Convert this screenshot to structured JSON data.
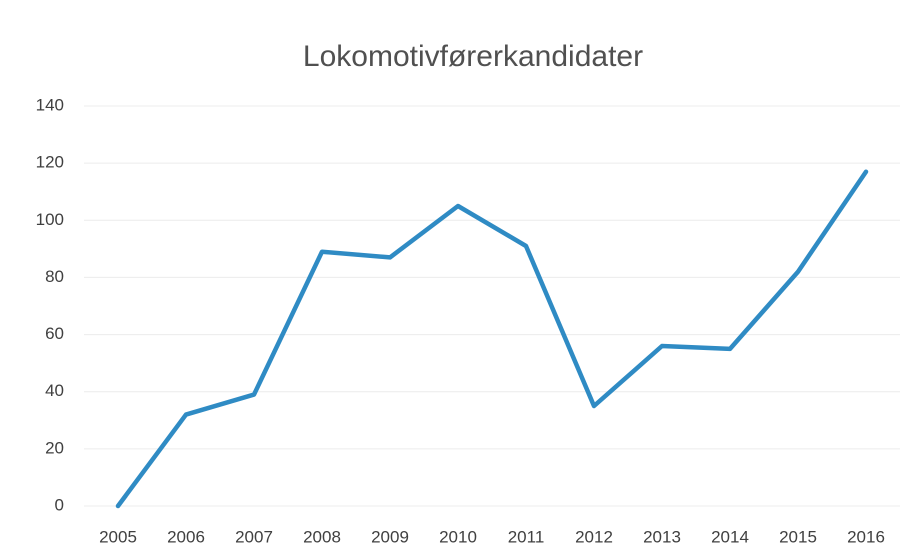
{
  "chart_data": {
    "type": "line",
    "title": "Lokomotivførerkandidater",
    "categories": [
      "2005",
      "2006",
      "2007",
      "2008",
      "2009",
      "2010",
      "2011",
      "2012",
      "2013",
      "2014",
      "2015",
      "2016"
    ],
    "series": [
      {
        "name": "Lokomotivførerkandidater",
        "color": "#2f8bc4",
        "values": [
          0,
          32,
          39,
          89,
          87,
          105,
          91,
          35,
          56,
          55,
          82,
          117
        ]
      }
    ],
    "ylim": [
      0,
      140
    ],
    "yticks": [
      0,
      20,
      40,
      60,
      80,
      100,
      120,
      140
    ],
    "grid": true
  }
}
